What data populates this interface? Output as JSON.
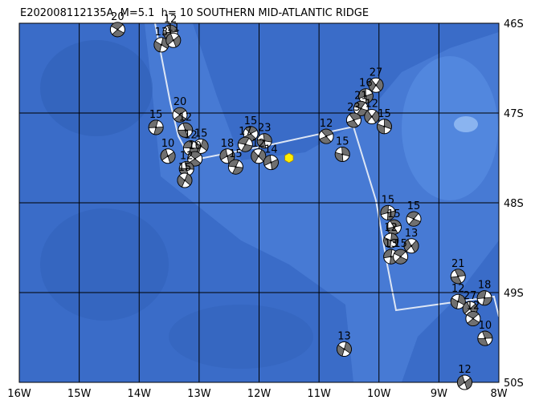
{
  "map": {
    "title": "E202008112135A  M=5.1  h= 10 SOUTHERN MID-ATLANTIC RIDGE",
    "xlim": [
      -16,
      -8
    ],
    "ylim": [
      -50,
      -46
    ],
    "xticks": [
      {
        "value": -16,
        "label": "16W"
      },
      {
        "value": -15,
        "label": "15W"
      },
      {
        "value": -14,
        "label": "14W"
      },
      {
        "value": -13,
        "label": "13W"
      },
      {
        "value": -12,
        "label": "12W"
      },
      {
        "value": -11,
        "label": "11W"
      },
      {
        "value": -10,
        "label": "10W"
      },
      {
        "value": -9,
        "label": "9W"
      },
      {
        "value": -8,
        "label": "8W"
      }
    ],
    "yticks": [
      {
        "value": -46,
        "label": "46S"
      },
      {
        "value": -47,
        "label": "47S"
      },
      {
        "value": -48,
        "label": "48S"
      },
      {
        "value": -49,
        "label": "49S"
      },
      {
        "value": -50,
        "label": "50S"
      }
    ],
    "epicenter": {
      "lon": -11.5,
      "lat": -47.5
    },
    "events": [
      {
        "lon": -14.36,
        "lat": -46.07,
        "depth": 20
      },
      {
        "lon": -13.48,
        "lat": -46.1,
        "depth": 12
      },
      {
        "lon": -13.63,
        "lat": -46.24,
        "depth": 13
      },
      {
        "lon": -13.43,
        "lat": -46.19,
        "depth": 11
      },
      {
        "lon": -13.72,
        "lat": -47.16,
        "depth": 15
      },
      {
        "lon": -13.32,
        "lat": -47.02,
        "depth": 20
      },
      {
        "lon": -13.23,
        "lat": -47.19,
        "depth": 12
      },
      {
        "lon": -12.97,
        "lat": -47.37,
        "depth": 15
      },
      {
        "lon": -13.52,
        "lat": -47.48,
        "depth": 10
      },
      {
        "lon": -13.14,
        "lat": -47.39,
        "depth": 12
      },
      {
        "lon": -13.07,
        "lat": -47.51,
        "depth": 10
      },
      {
        "lon": -13.21,
        "lat": -47.62,
        "depth": 12
      },
      {
        "lon": -13.24,
        "lat": -47.75,
        "depth": 15
      },
      {
        "lon": -12.53,
        "lat": -47.48,
        "depth": 18
      },
      {
        "lon": -12.39,
        "lat": -47.6,
        "depth": 15
      },
      {
        "lon": -12.14,
        "lat": -47.23,
        "depth": 15
      },
      {
        "lon": -11.91,
        "lat": -47.31,
        "depth": 23
      },
      {
        "lon": -12.01,
        "lat": -47.48,
        "depth": 12
      },
      {
        "lon": -11.8,
        "lat": -47.55,
        "depth": 14
      },
      {
        "lon": -12.23,
        "lat": -47.35,
        "depth": 17
      },
      {
        "lon": -10.88,
        "lat": -47.26,
        "depth": 12
      },
      {
        "lon": -10.61,
        "lat": -47.46,
        "depth": 15
      },
      {
        "lon": -10.05,
        "lat": -46.69,
        "depth": 27
      },
      {
        "lon": -10.22,
        "lat": -46.81,
        "depth": 16
      },
      {
        "lon": -10.3,
        "lat": -46.95,
        "depth": 21
      },
      {
        "lon": -10.42,
        "lat": -47.08,
        "depth": 23
      },
      {
        "lon": -9.91,
        "lat": -47.15,
        "depth": 15
      },
      {
        "lon": -10.12,
        "lat": -47.04,
        "depth": 12
      },
      {
        "lon": -9.85,
        "lat": -48.11,
        "depth": 15
      },
      {
        "lon": -9.42,
        "lat": -48.18,
        "depth": 15
      },
      {
        "lon": -9.75,
        "lat": -48.27,
        "depth": 15
      },
      {
        "lon": -9.8,
        "lat": -48.42,
        "depth": 12
      },
      {
        "lon": -9.46,
        "lat": -48.48,
        "depth": 13
      },
      {
        "lon": -9.8,
        "lat": -48.6,
        "depth": 13
      },
      {
        "lon": -9.64,
        "lat": -48.6,
        "depth": 15
      },
      {
        "lon": -8.68,
        "lat": -48.82,
        "depth": 21
      },
      {
        "lon": -8.68,
        "lat": -49.1,
        "depth": 12
      },
      {
        "lon": -8.48,
        "lat": -49.18,
        "depth": 27
      },
      {
        "lon": -8.24,
        "lat": -49.06,
        "depth": 18
      },
      {
        "lon": -8.43,
        "lat": -49.29,
        "depth": 12
      },
      {
        "lon": -8.23,
        "lat": -49.51,
        "depth": 10
      },
      {
        "lon": -10.58,
        "lat": -49.63,
        "depth": 13
      },
      {
        "lon": -8.57,
        "lat": -50.0,
        "depth": 12
      }
    ]
  }
}
